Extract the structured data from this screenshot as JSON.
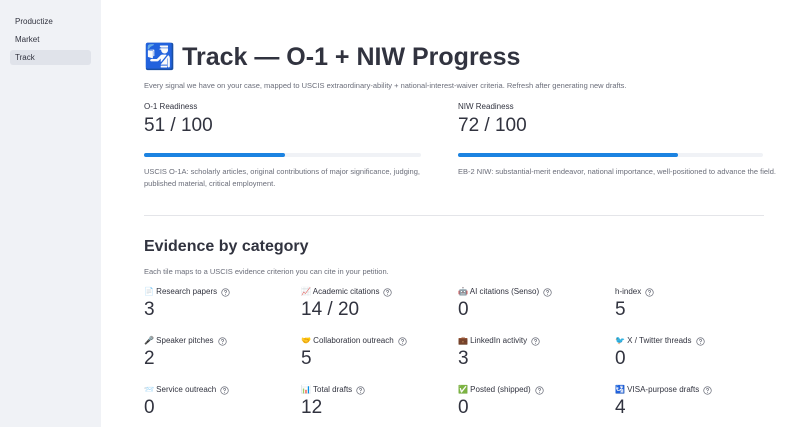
{
  "sidebar": {
    "items": [
      "Productize",
      "Market",
      "Track"
    ],
    "active": 2
  },
  "header": {
    "title": "🛂 Track — O-1 + NIW Progress",
    "caption": "Every signal we have on your case, mapped to USCIS extraordinary-ability + national-interest-waiver criteria. Refresh after generating new drafts."
  },
  "metrics": [
    {
      "label": "O-1 Readiness",
      "value": "51 / 100",
      "progress": 51,
      "max": 100,
      "description": "USCIS O-1A: scholarly articles, original contributions of major significance, judging, published material, critical employment."
    },
    {
      "label": "NIW Readiness",
      "value": "72 / 100",
      "progress": 72,
      "max": 100,
      "description": "EB-2 NIW: substantial-merit endeavor, national importance, well-positioned to advance the field."
    }
  ],
  "evidence": {
    "heading": "Evidence by category",
    "caption": "Each tile maps to a USCIS evidence criterion you can cite in your petition.",
    "tiles": [
      {
        "label": "📄 Research papers",
        "value": "3"
      },
      {
        "label": "📈 Academic citations",
        "value": "14 / 20"
      },
      {
        "label": "🤖 AI citations (Senso)",
        "value": "0"
      },
      {
        "label": "h-index",
        "value": "5"
      },
      {
        "label": "🎤 Speaker pitches",
        "value": "2"
      },
      {
        "label": "🤝 Collaboration outreach",
        "value": "5"
      },
      {
        "label": "💼 LinkedIn activity",
        "value": "3"
      },
      {
        "label": "🐦 X / Twitter threads",
        "value": "0"
      },
      {
        "label": "📨 Service outreach",
        "value": "0"
      },
      {
        "label": "📊 Total drafts",
        "value": "12"
      },
      {
        "label": "✅ Posted (shipped)",
        "value": "0"
      },
      {
        "label": "🛂 VISA-purpose drafts",
        "value": "4"
      }
    ]
  }
}
